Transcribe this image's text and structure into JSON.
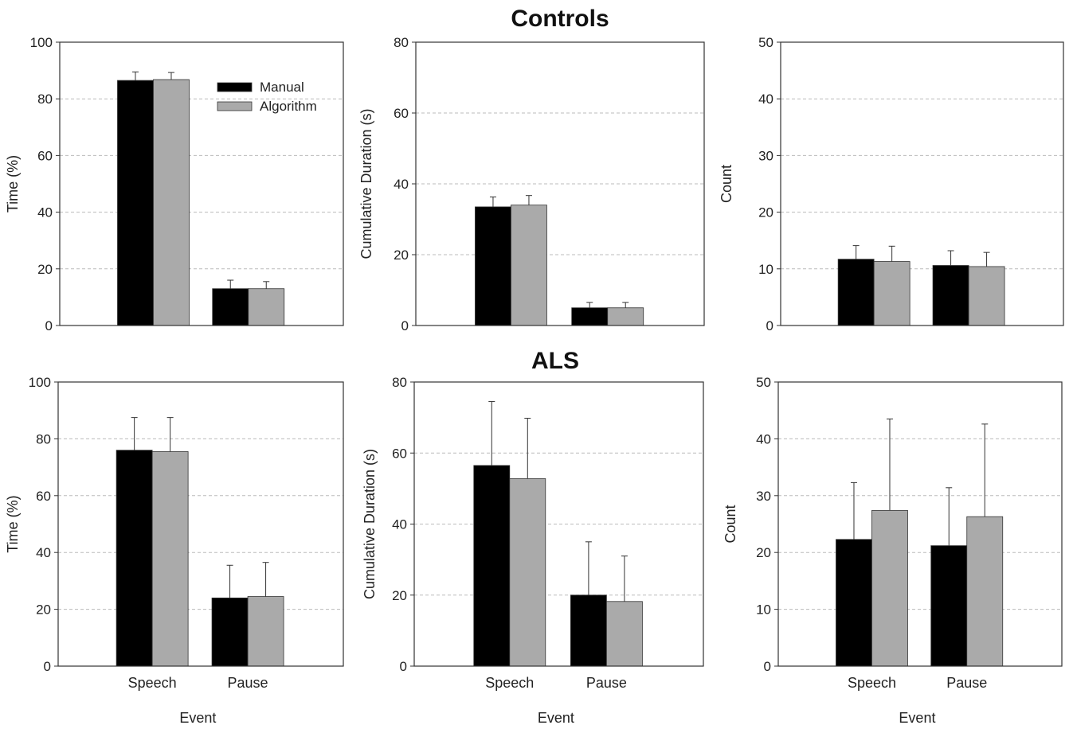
{
  "figure": {
    "group_titles": [
      "Controls",
      "ALS"
    ]
  },
  "legend": {
    "entries": [
      {
        "label": "Manual",
        "color": "#000000"
      },
      {
        "label": "Algorithm",
        "color": "#aaaaaa"
      }
    ]
  },
  "colors": {
    "manual": "#000000",
    "algorithm": "#aaaaaa",
    "grid": "#bbbbbb",
    "axis": "#333333"
  },
  "chart_data": [
    {
      "type": "bar",
      "group": "Controls",
      "categories": [
        "",
        ""
      ],
      "ylabel": "Time (%)",
      "xlabel": "",
      "ylim": [
        0,
        100
      ],
      "yticks": [
        0,
        20,
        40,
        60,
        80,
        100
      ],
      "series": [
        {
          "name": "Manual",
          "values": [
            86.5,
            13
          ],
          "errors": [
            3,
            3
          ]
        },
        {
          "name": "Algorithm",
          "values": [
            86.8,
            13
          ],
          "errors": [
            2.5,
            2.5
          ]
        }
      ],
      "grid": true,
      "legend": "top-right"
    },
    {
      "type": "bar",
      "group": "Controls",
      "categories": [
        "",
        ""
      ],
      "ylabel": "Cumulative Duration (s)",
      "xlabel": "",
      "ylim": [
        0,
        80
      ],
      "yticks": [
        0,
        20,
        40,
        60,
        80
      ],
      "series": [
        {
          "name": "Manual",
          "values": [
            33.5,
            5
          ],
          "errors": [
            2.8,
            1.5
          ]
        },
        {
          "name": "Algorithm",
          "values": [
            34,
            5
          ],
          "errors": [
            2.7,
            1.5
          ]
        }
      ],
      "grid": true
    },
    {
      "type": "bar",
      "group": "Controls",
      "categories": [
        "",
        ""
      ],
      "ylabel": "Count",
      "xlabel": "",
      "ylim": [
        0,
        50
      ],
      "yticks": [
        0,
        10,
        20,
        30,
        40,
        50
      ],
      "series": [
        {
          "name": "Manual",
          "values": [
            11.7,
            10.6
          ],
          "errors": [
            2.4,
            2.6
          ]
        },
        {
          "name": "Algorithm",
          "values": [
            11.3,
            10.4
          ],
          "errors": [
            2.7,
            2.5
          ]
        }
      ],
      "grid": true
    },
    {
      "type": "bar",
      "group": "ALS",
      "categories": [
        "Speech",
        "Pause"
      ],
      "ylabel": "Time (%)",
      "xlabel": "Event",
      "ylim": [
        0,
        100
      ],
      "yticks": [
        0,
        20,
        40,
        60,
        80,
        100
      ],
      "series": [
        {
          "name": "Manual",
          "values": [
            76,
            24
          ],
          "errors": [
            11.5,
            11.5
          ]
        },
        {
          "name": "Algorithm",
          "values": [
            75.5,
            24.5
          ],
          "errors": [
            12,
            12
          ]
        }
      ],
      "grid": true
    },
    {
      "type": "bar",
      "group": "ALS",
      "categories": [
        "Speech",
        "Pause"
      ],
      "ylabel": "Cumulative Duration (s)",
      "xlabel": "Event",
      "ylim": [
        0,
        80
      ],
      "yticks": [
        0,
        20,
        40,
        60,
        80
      ],
      "series": [
        {
          "name": "Manual",
          "values": [
            56.5,
            20
          ],
          "errors": [
            18,
            15
          ]
        },
        {
          "name": "Algorithm",
          "values": [
            52.8,
            18.2
          ],
          "errors": [
            17,
            12.8
          ]
        }
      ],
      "grid": true
    },
    {
      "type": "bar",
      "group": "ALS",
      "categories": [
        "Speech",
        "Pause"
      ],
      "ylabel": "Count",
      "xlabel": "Event",
      "ylim": [
        0,
        50
      ],
      "yticks": [
        0,
        10,
        20,
        30,
        40,
        50
      ],
      "series": [
        {
          "name": "Manual",
          "values": [
            22.3,
            21.2
          ],
          "errors": [
            10,
            10.2
          ]
        },
        {
          "name": "Algorithm",
          "values": [
            27.4,
            26.3
          ],
          "errors": [
            16.1,
            16.3
          ]
        }
      ],
      "grid": true
    }
  ]
}
